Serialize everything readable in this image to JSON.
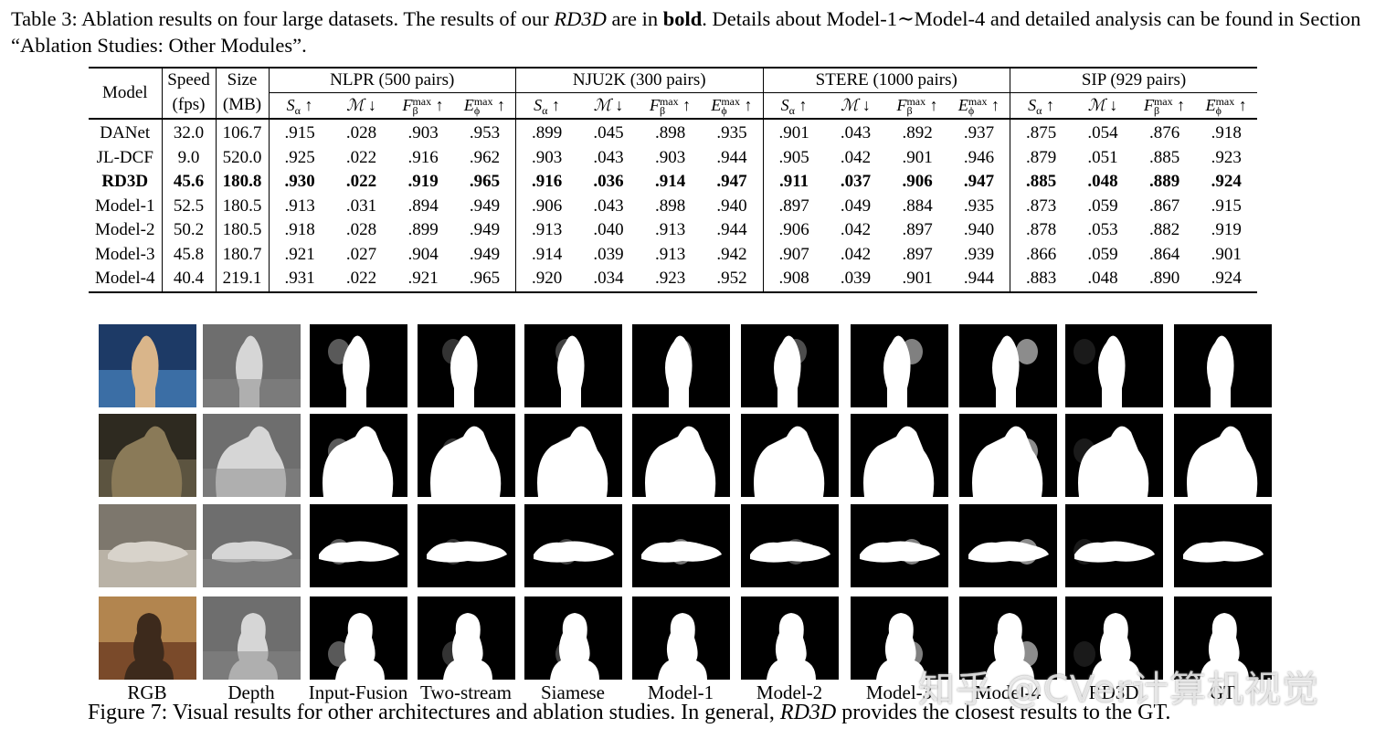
{
  "table_caption": {
    "label": "Table 3:",
    "text_a": " Ablation results on four large datasets. The results of our ",
    "ital": "RD3D",
    "text_b": " are in ",
    "bold": "bold",
    "text_c": ". Details about Model-1∼Model-4 and detailed analysis can be found in Section “Ablation Studies: Other Modules”."
  },
  "table": {
    "col_model": "Model",
    "col_speed_1": "Speed",
    "col_speed_2": "(fps)",
    "col_size_1": "Size",
    "col_size_2": "(MB)",
    "datasets": [
      "NLPR (500 pairs)",
      "NJU2K (300 pairs)",
      "STERE (1000 pairs)",
      "SIP (929 pairs)"
    ],
    "metrics": [
      {
        "sym": "S",
        "sub": "α",
        "sup": "",
        "arrow": "↑"
      },
      {
        "sym": "ℳ",
        "sub": "",
        "sup": "",
        "arrow": "↓"
      },
      {
        "sym": "F",
        "sub": "β",
        "sup": "max",
        "arrow": "↑"
      },
      {
        "sym": "E",
        "sub": "ϕ",
        "sup": "max",
        "arrow": "↑"
      }
    ],
    "rows": [
      {
        "model": "DANet",
        "speed": "32.0",
        "size": "106.7",
        "vals": [
          ".915",
          ".028",
          ".903",
          ".953",
          ".899",
          ".045",
          ".898",
          ".935",
          ".901",
          ".043",
          ".892",
          ".937",
          ".875",
          ".054",
          ".876",
          ".918"
        ]
      },
      {
        "model": "JL-DCF",
        "speed": "9.0",
        "size": "520.0",
        "vals": [
          ".925",
          ".022",
          ".916",
          ".962",
          ".903",
          ".043",
          ".903",
          ".944",
          ".905",
          ".042",
          ".901",
          ".946",
          ".879",
          ".051",
          ".885",
          ".923"
        ]
      },
      {
        "model": "RD3D",
        "speed": "45.6",
        "size": "180.8",
        "bold": true,
        "vals": [
          ".930",
          ".022",
          ".919",
          ".965",
          ".916",
          ".036",
          ".914",
          ".947",
          ".911",
          ".037",
          ".906",
          ".947",
          ".885",
          ".048",
          ".889",
          ".924"
        ]
      },
      {
        "model": "Model-1",
        "speed": "52.5",
        "size": "180.5",
        "vals": [
          ".913",
          ".031",
          ".894",
          ".949",
          ".906",
          ".043",
          ".898",
          ".940",
          ".897",
          ".049",
          ".884",
          ".935",
          ".873",
          ".059",
          ".867",
          ".915"
        ]
      },
      {
        "model": "Model-2",
        "speed": "50.2",
        "size": "180.5",
        "vals": [
          ".918",
          ".028",
          ".899",
          ".949",
          ".913",
          ".040",
          ".913",
          ".944",
          ".906",
          ".042",
          ".897",
          ".940",
          ".878",
          ".053",
          ".882",
          ".919"
        ]
      },
      {
        "model": "Model-3",
        "speed": "45.8",
        "size": "180.7",
        "vals": [
          ".921",
          ".027",
          ".904",
          ".949",
          ".914",
          ".039",
          ".913",
          ".942",
          ".907",
          ".042",
          ".897",
          ".939",
          ".866",
          ".059",
          ".864",
          ".901"
        ]
      },
      {
        "model": "Model-4",
        "speed": "40.4",
        "size": "219.1",
        "vals": [
          ".931",
          ".022",
          ".921",
          ".965",
          ".920",
          ".034",
          ".923",
          ".952",
          ".908",
          ".039",
          ".901",
          ".944",
          ".883",
          ".048",
          ".890",
          ".924"
        ]
      }
    ]
  },
  "figure": {
    "columns": [
      "RGB",
      "Depth",
      "Input-Fusion",
      "Two-stream",
      "Siamese",
      "Model-1",
      "Model-2",
      "Model-3",
      "Model-4",
      "RD3D",
      "GT"
    ],
    "caption_label": "Figure 7:",
    "caption_a": " Visual results for other architectures and ablation studies. In general, ",
    "caption_ital": "RD3D",
    "caption_b": " provides the closest results to the GT."
  },
  "watermark": "知乎 @CVer计算机视觉"
}
